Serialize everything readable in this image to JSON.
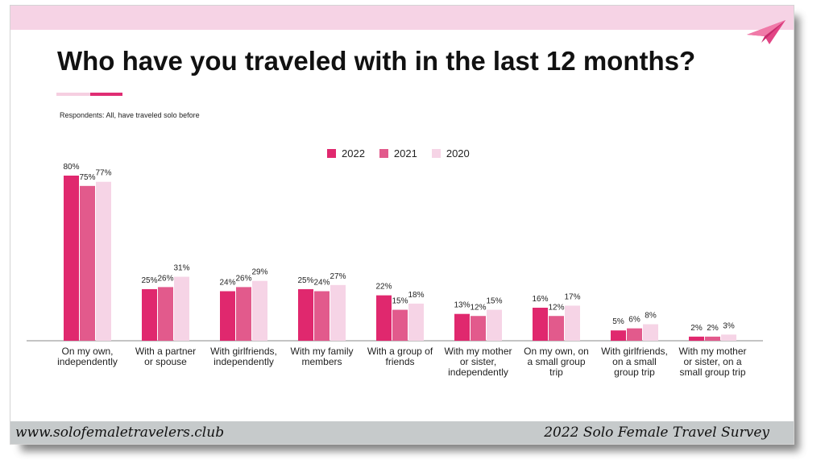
{
  "title": "Who have you traveled with in the last 12 months?",
  "subtitle": "Respondents: All, have traveled solo before",
  "footer": {
    "website": "www.solofemaletravelers.club",
    "survey": "2022 Solo Female Travel Survey"
  },
  "icons": {
    "logo": "paper-plane-icon"
  },
  "colors": {
    "accent": "#e02d73",
    "band": "#f6d3e5",
    "footer": "#c6cacb"
  },
  "chart_data": {
    "type": "bar",
    "categories": [
      [
        "On my own,",
        "independently"
      ],
      [
        "With a partner",
        "or spouse"
      ],
      [
        "With girlfriends,",
        "independently"
      ],
      [
        "With my family",
        "members"
      ],
      [
        "With a group of",
        "friends"
      ],
      [
        "With my mother",
        "or sister,",
        "independently"
      ],
      [
        "On my own, on",
        "a small group",
        "trip"
      ],
      [
        "With girlfriends,",
        "on a small",
        "group trip"
      ],
      [
        "With my mother",
        "or sister, on a",
        "small group trip"
      ]
    ],
    "series": [
      {
        "name": "2022",
        "color": "#e0286e",
        "values": [
          80,
          25,
          24,
          25,
          22,
          13,
          16,
          5,
          2
        ]
      },
      {
        "name": "2021",
        "color": "#e25a8c",
        "values": [
          75,
          26,
          26,
          24,
          15,
          12,
          12,
          6,
          2
        ]
      },
      {
        "name": "2020",
        "color": "#f6d4e6",
        "values": [
          77,
          31,
          29,
          27,
          18,
          15,
          17,
          8,
          3
        ]
      }
    ],
    "value_suffix": "%",
    "ylim": [
      0,
      80
    ],
    "grid": false,
    "legend_position": "top-center"
  }
}
